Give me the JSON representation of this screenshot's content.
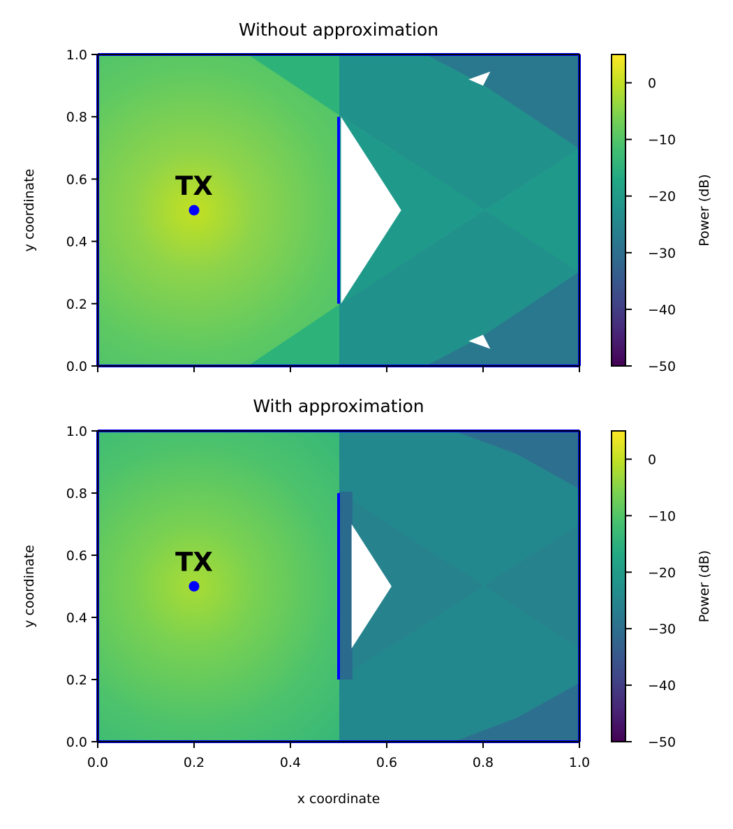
{
  "chart_data": [
    {
      "type": "heatmap",
      "title": "Without approximation",
      "xlabel": "",
      "ylabel": "y coordinate",
      "xlim": [
        0.0,
        1.0
      ],
      "ylim": [
        0.0,
        1.0
      ],
      "x_ticks": [
        0.0,
        0.2,
        0.4,
        0.6,
        0.8,
        1.0
      ],
      "x_tick_labels_shown": false,
      "y_ticks": [
        0.0,
        0.2,
        0.4,
        0.6,
        0.8,
        1.0
      ],
      "y_tick_labels": [
        "0.0",
        "0.2",
        "0.4",
        "0.6",
        "0.8",
        "1.0"
      ],
      "colormap": "viridis",
      "colorbar": {
        "label": "Power (dB)",
        "range": [
          -50,
          5
        ],
        "ticks": [
          0,
          -10,
          -20,
          -30,
          -40,
          -50
        ],
        "tick_labels": [
          "0",
          "−10",
          "−20",
          "−30",
          "−40",
          "−50"
        ]
      },
      "transmitter": {
        "label": "TX",
        "x": 0.2,
        "y": 0.5,
        "color": "#0000ff"
      },
      "walls": [
        {
          "x1": 0.5,
          "y1": 0.2,
          "x2": 0.5,
          "y2": 0.8,
          "color": "#0000ff"
        },
        {
          "x1": 0.0,
          "y1": 0.0,
          "x2": 1.0,
          "y2": 0.0,
          "color": "#0000ff"
        },
        {
          "x1": 1.0,
          "y1": 0.0,
          "x2": 1.0,
          "y2": 1.0,
          "color": "#0000ff"
        },
        {
          "x1": 0.0,
          "y1": 1.0,
          "x2": 1.0,
          "y2": 1.0,
          "color": "#0000ff"
        },
        {
          "x1": 0.0,
          "y1": 0.0,
          "x2": 0.0,
          "y2": 1.0,
          "color": "#0000ff"
        }
      ],
      "no_signal_regions": [
        [
          [
            0.505,
            0.8
          ],
          [
            0.505,
            0.2
          ],
          [
            0.63,
            0.5
          ]
        ],
        [
          [
            0.77,
            0.92
          ],
          [
            0.815,
            0.945
          ],
          [
            0.8,
            0.9
          ]
        ],
        [
          [
            0.77,
            0.08
          ],
          [
            0.815,
            0.055
          ],
          [
            0.8,
            0.1
          ]
        ]
      ],
      "shadow_regions": [
        {
          "points": [
            [
              0.5,
              0.8
            ],
            [
              0.5,
              1.0
            ],
            [
              1.0,
              1.0
            ],
            [
              1.0,
              0.7
            ]
          ],
          "power_db": -28
        },
        {
          "points": [
            [
              0.5,
              0.2
            ],
            [
              0.5,
              0.0
            ],
            [
              1.0,
              0.0
            ],
            [
              1.0,
              0.3
            ]
          ],
          "power_db": -28
        },
        {
          "points": [
            [
              0.5,
              0.8
            ],
            [
              1.0,
              0.2
            ],
            [
              1.0,
              0.8
            ],
            [
              0.5,
              0.2
            ]
          ],
          "power_db": -22
        }
      ]
    },
    {
      "type": "heatmap",
      "title": "With approximation",
      "xlabel": "x coordinate",
      "ylabel": "y coordinate",
      "xlim": [
        0.0,
        1.0
      ],
      "ylim": [
        0.0,
        1.0
      ],
      "x_ticks": [
        0.0,
        0.2,
        0.4,
        0.6,
        0.8,
        1.0
      ],
      "x_tick_labels": [
        "0.0",
        "0.2",
        "0.4",
        "0.6",
        "0.8",
        "1.0"
      ],
      "y_ticks": [
        0.0,
        0.2,
        0.4,
        0.6,
        0.8,
        1.0
      ],
      "y_tick_labels": [
        "0.0",
        "0.2",
        "0.4",
        "0.6",
        "0.8",
        "1.0"
      ],
      "colormap": "viridis",
      "colorbar": {
        "label": "Power (dB)",
        "range": [
          -50,
          5
        ],
        "ticks": [
          0,
          -10,
          -20,
          -30,
          -40,
          -50
        ],
        "tick_labels": [
          "0",
          "−10",
          "−20",
          "−30",
          "−40",
          "−50"
        ]
      },
      "transmitter": {
        "label": "TX",
        "x": 0.2,
        "y": 0.5,
        "color": "#0000ff"
      },
      "walls": [
        {
          "x1": 0.5,
          "y1": 0.2,
          "x2": 0.5,
          "y2": 0.8,
          "color": "#0000ff"
        },
        {
          "x1": 0.0,
          "y1": 0.0,
          "x2": 1.0,
          "y2": 0.0,
          "color": "#0000ff"
        },
        {
          "x1": 1.0,
          "y1": 0.0,
          "x2": 1.0,
          "y2": 1.0,
          "color": "#0000ff"
        },
        {
          "x1": 0.0,
          "y1": 1.0,
          "x2": 1.0,
          "y2": 1.0,
          "color": "#0000ff"
        },
        {
          "x1": 0.0,
          "y1": 0.0,
          "x2": 0.0,
          "y2": 1.0,
          "color": "#0000ff"
        }
      ],
      "no_signal_regions": [
        [
          [
            0.527,
            0.7
          ],
          [
            0.527,
            0.3
          ],
          [
            0.61,
            0.5
          ]
        ]
      ],
      "shadow_regions": [
        {
          "points": [
            [
              0.5,
              0.8
            ],
            [
              0.5,
              1.0
            ],
            [
              1.0,
              1.0
            ],
            [
              1.0,
              0.0
            ],
            [
              0.5,
              0.0
            ],
            [
              0.5,
              0.2
            ]
          ],
          "power_db": -26
        }
      ]
    }
  ]
}
